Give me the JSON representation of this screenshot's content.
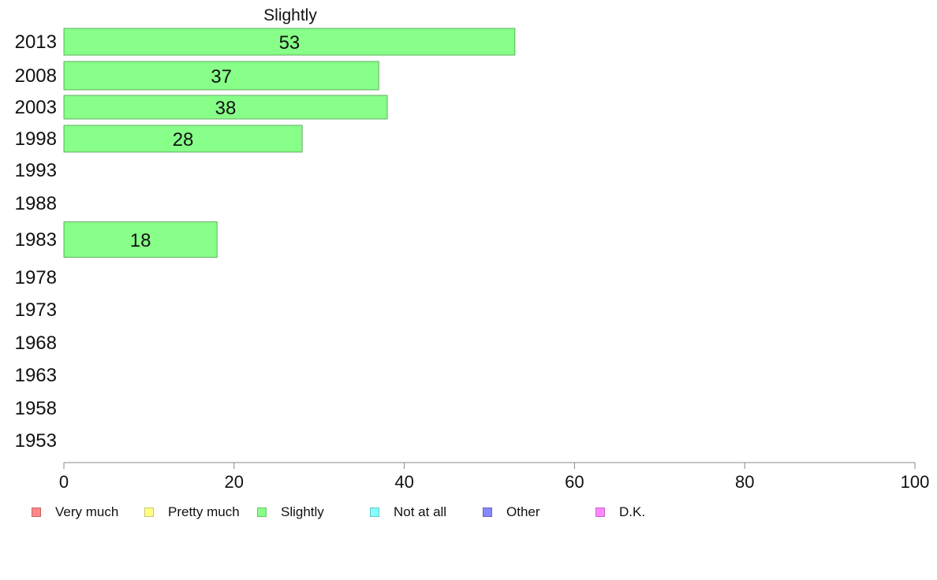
{
  "chart_data": {
    "type": "bar",
    "orientation": "horizontal",
    "title": "Slightly",
    "xlabel": "",
    "ylabel": "",
    "xlim": [
      0,
      100
    ],
    "xticks": [
      0,
      20,
      40,
      60,
      80,
      100
    ],
    "categories": [
      "2013",
      "2008",
      "2003",
      "1998",
      "1993",
      "1988",
      "1983",
      "1978",
      "1973",
      "1968",
      "1963",
      "1958",
      "1953"
    ],
    "series": [
      {
        "name": "Slightly",
        "color": "#88ff88",
        "values": [
          53,
          37,
          38,
          28,
          null,
          null,
          18,
          null,
          null,
          null,
          null,
          null,
          null
        ],
        "labels": [
          "53",
          "37",
          "38",
          "28",
          "",
          "",
          "18",
          "",
          "",
          "",
          "",
          "",
          ""
        ]
      }
    ],
    "grid": false,
    "legend_position": "bottom"
  },
  "legend": [
    {
      "label": "Very much",
      "color": "#ff8888"
    },
    {
      "label": "Pretty much",
      "color": "#ffff88"
    },
    {
      "label": "Slightly",
      "color": "#88ff88"
    },
    {
      "label": "Not at all",
      "color": "#88ffff"
    },
    {
      "label": "Other",
      "color": "#8888ff"
    },
    {
      "label": "D.K.",
      "color": "#ff88ff"
    }
  ]
}
